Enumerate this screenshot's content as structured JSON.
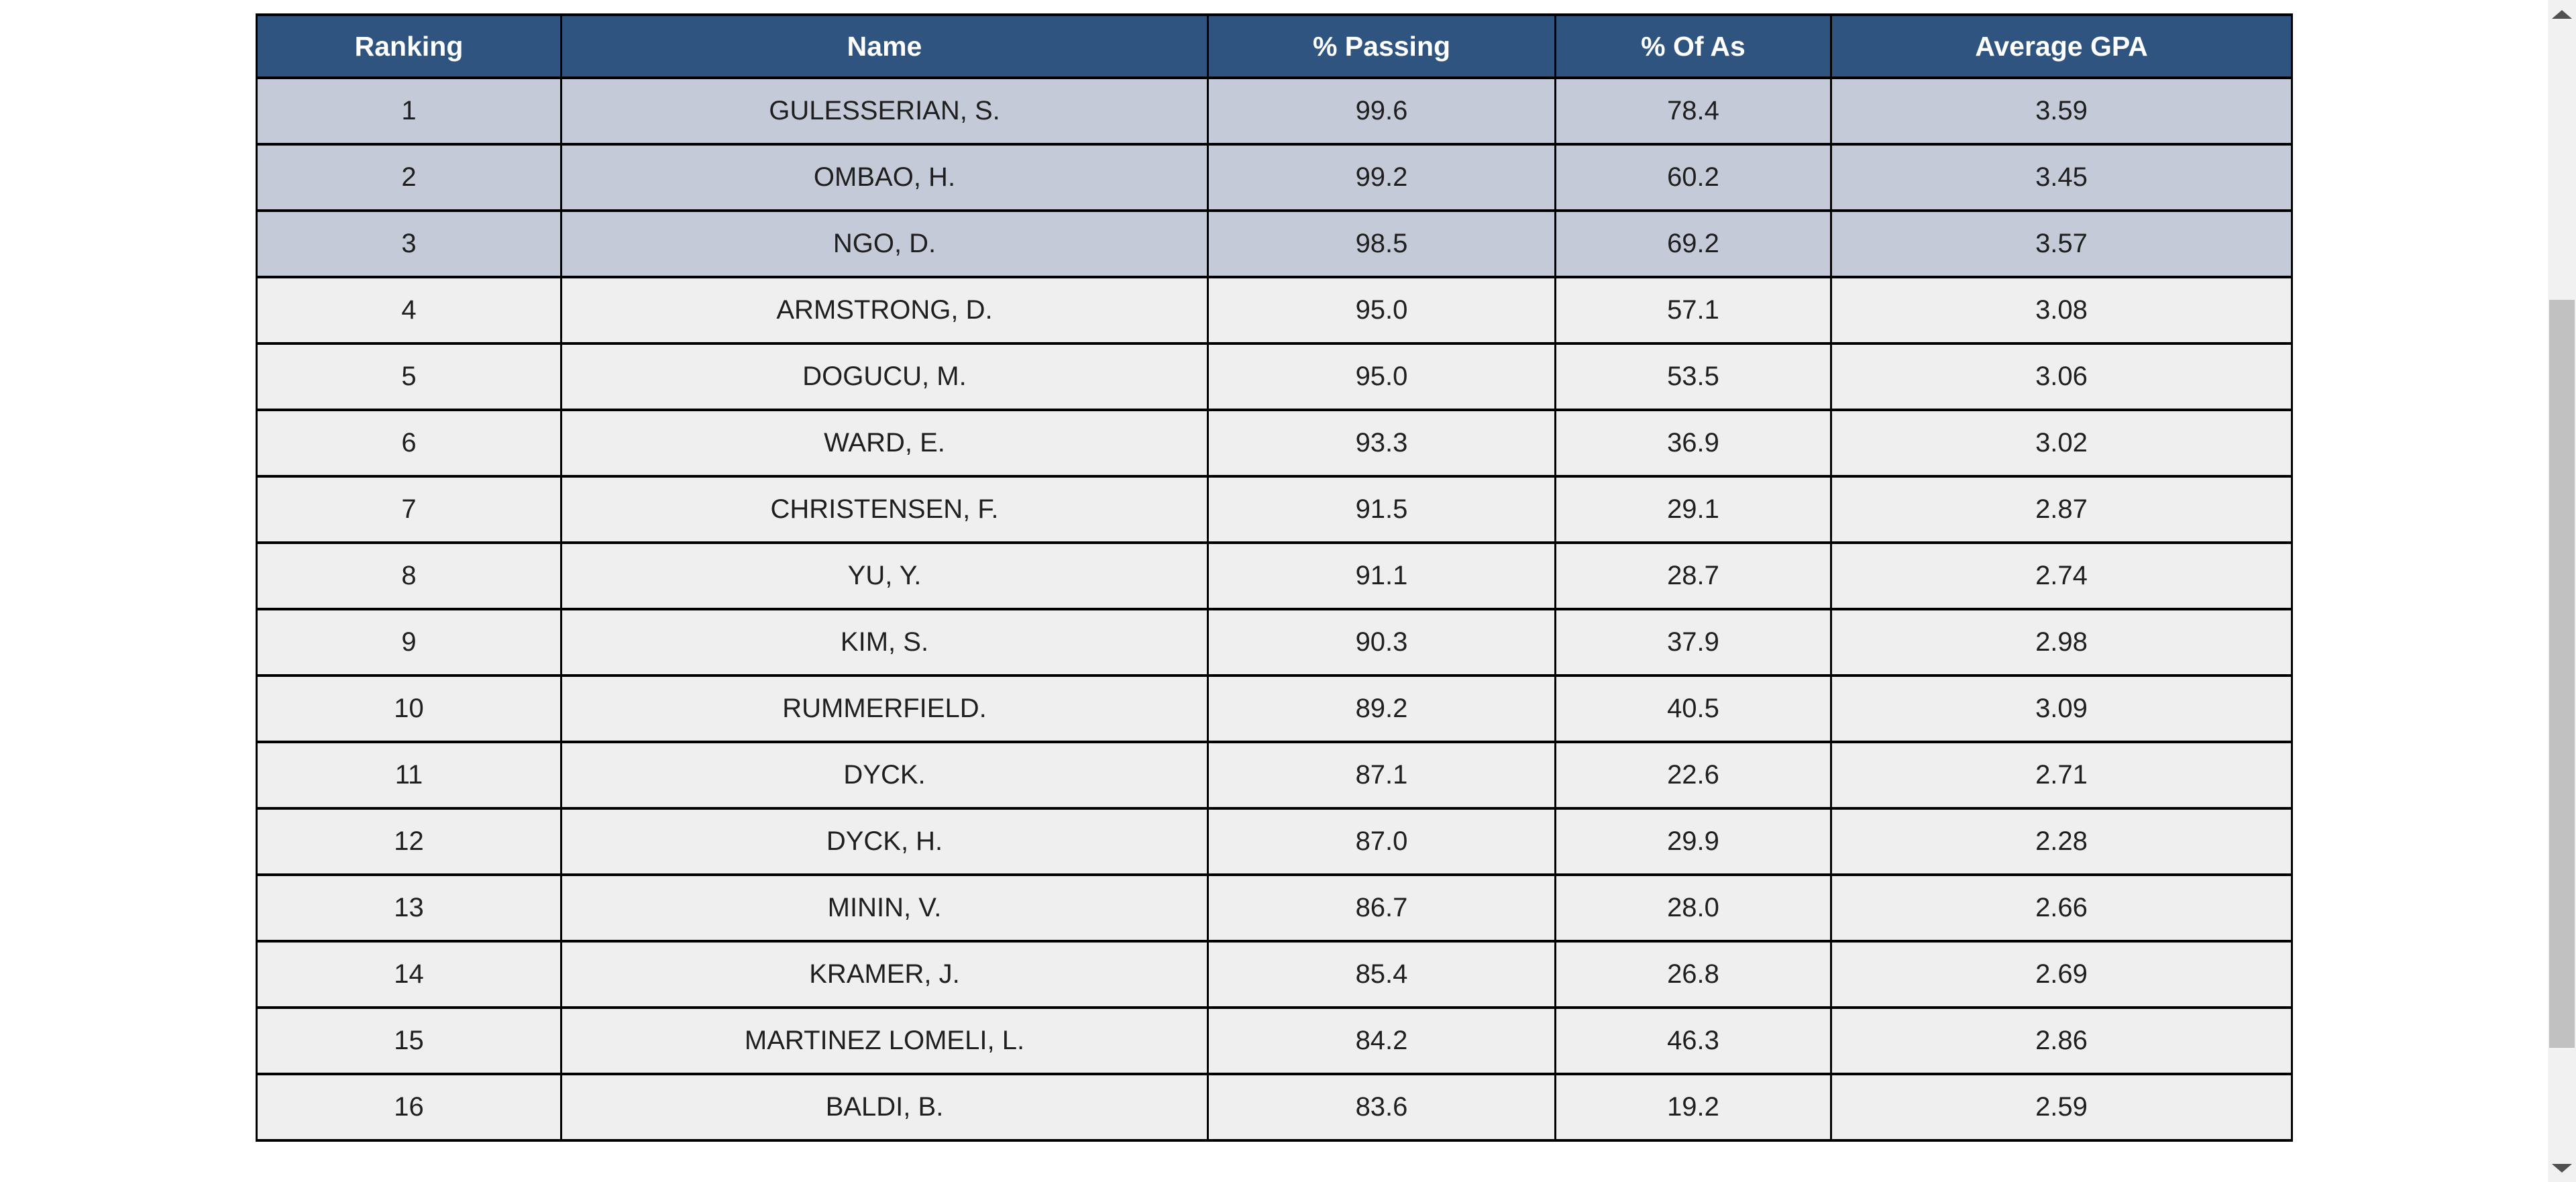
{
  "table": {
    "columns": [
      "Ranking",
      "Name",
      "% Passing",
      "% Of As",
      "Average GPA"
    ],
    "rows": [
      {
        "ranking": "1",
        "name": "GULESSERIAN, S.",
        "passing": "99.6",
        "of_as": "78.4",
        "gpa": "3.59",
        "highlight": true
      },
      {
        "ranking": "2",
        "name": "OMBAO, H.",
        "passing": "99.2",
        "of_as": "60.2",
        "gpa": "3.45",
        "highlight": true
      },
      {
        "ranking": "3",
        "name": "NGO, D.",
        "passing": "98.5",
        "of_as": "69.2",
        "gpa": "3.57",
        "highlight": true
      },
      {
        "ranking": "4",
        "name": "ARMSTRONG, D.",
        "passing": "95.0",
        "of_as": "57.1",
        "gpa": "3.08",
        "highlight": false
      },
      {
        "ranking": "5",
        "name": "DOGUCU, M.",
        "passing": "95.0",
        "of_as": "53.5",
        "gpa": "3.06",
        "highlight": false
      },
      {
        "ranking": "6",
        "name": "WARD, E.",
        "passing": "93.3",
        "of_as": "36.9",
        "gpa": "3.02",
        "highlight": false
      },
      {
        "ranking": "7",
        "name": "CHRISTENSEN, F.",
        "passing": "91.5",
        "of_as": "29.1",
        "gpa": "2.87",
        "highlight": false
      },
      {
        "ranking": "8",
        "name": "YU, Y.",
        "passing": "91.1",
        "of_as": "28.7",
        "gpa": "2.74",
        "highlight": false
      },
      {
        "ranking": "9",
        "name": "KIM, S.",
        "passing": "90.3",
        "of_as": "37.9",
        "gpa": "2.98",
        "highlight": false
      },
      {
        "ranking": "10",
        "name": "RUMMERFIELD.",
        "passing": "89.2",
        "of_as": "40.5",
        "gpa": "3.09",
        "highlight": false
      },
      {
        "ranking": "11",
        "name": "DYCK.",
        "passing": "87.1",
        "of_as": "22.6",
        "gpa": "2.71",
        "highlight": false
      },
      {
        "ranking": "12",
        "name": "DYCK, H.",
        "passing": "87.0",
        "of_as": "29.9",
        "gpa": "2.28",
        "highlight": false
      },
      {
        "ranking": "13",
        "name": "MININ, V.",
        "passing": "86.7",
        "of_as": "28.0",
        "gpa": "2.66",
        "highlight": false
      },
      {
        "ranking": "14",
        "name": "KRAMER, J.",
        "passing": "85.4",
        "of_as": "26.8",
        "gpa": "2.69",
        "highlight": false
      },
      {
        "ranking": "15",
        "name": "MARTINEZ LOMELI, L.",
        "passing": "84.2",
        "of_as": "46.3",
        "gpa": "2.86",
        "highlight": false
      },
      {
        "ranking": "16",
        "name": "BALDI, B.",
        "passing": "83.6",
        "of_as": "19.2",
        "gpa": "2.59",
        "highlight": false
      }
    ],
    "colors": {
      "header_bg": "#2F5480",
      "header_text": "#FFFFFF",
      "top3_bg": "#C4CAD7",
      "row_bg": "#EFEFEF",
      "border": "#000000",
      "text": "#1F1F1F"
    }
  },
  "scrollbar": {
    "up_icon": "triangle-up",
    "down_icon": "triangle-down",
    "track_color": "#F1F1F1",
    "thumb_color": "#C1C1C1"
  }
}
